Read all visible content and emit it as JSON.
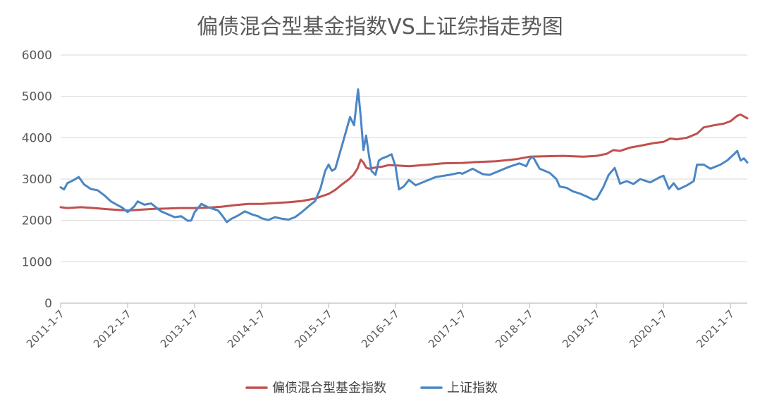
{
  "chart_data": {
    "type": "line",
    "title": "偏债混合型基金指数VS上证综指走势图",
    "xlabel": "",
    "ylabel": "",
    "ylim": [
      0,
      6000
    ],
    "yticks": [
      0,
      1000,
      2000,
      3000,
      4000,
      5000,
      6000
    ],
    "x_tick_labels": [
      "2011-1-7",
      "2012-1-7",
      "2013-1-7",
      "2014-1-7",
      "2015-1-7",
      "2016-1-7",
      "2017-1-7",
      "2018-1-7",
      "2019-1-7",
      "2020-1-7",
      "2021-1-7"
    ],
    "xlim_years": [
      2011.0,
      2021.25
    ],
    "legend_position": "bottom",
    "grid": true,
    "series": [
      {
        "name": "偏债混合型基金指数",
        "color": "#c0504d",
        "points": [
          [
            2011.0,
            2320
          ],
          [
            2011.1,
            2300
          ],
          [
            2011.3,
            2320
          ],
          [
            2011.5,
            2300
          ],
          [
            2011.7,
            2270
          ],
          [
            2011.9,
            2250
          ],
          [
            2012.0,
            2240
          ],
          [
            2012.2,
            2260
          ],
          [
            2012.4,
            2280
          ],
          [
            2012.6,
            2290
          ],
          [
            2012.8,
            2300
          ],
          [
            2013.0,
            2300
          ],
          [
            2013.2,
            2310
          ],
          [
            2013.4,
            2330
          ],
          [
            2013.6,
            2370
          ],
          [
            2013.8,
            2400
          ],
          [
            2014.0,
            2400
          ],
          [
            2014.2,
            2420
          ],
          [
            2014.4,
            2440
          ],
          [
            2014.6,
            2470
          ],
          [
            2014.8,
            2530
          ],
          [
            2015.0,
            2640
          ],
          [
            2015.1,
            2740
          ],
          [
            2015.2,
            2870
          ],
          [
            2015.3,
            2990
          ],
          [
            2015.37,
            3100
          ],
          [
            2015.43,
            3250
          ],
          [
            2015.48,
            3470
          ],
          [
            2015.52,
            3400
          ],
          [
            2015.56,
            3280
          ],
          [
            2015.6,
            3250
          ],
          [
            2015.7,
            3280
          ],
          [
            2015.8,
            3300
          ],
          [
            2015.9,
            3340
          ],
          [
            2016.0,
            3330
          ],
          [
            2016.2,
            3310
          ],
          [
            2016.5,
            3350
          ],
          [
            2016.7,
            3380
          ],
          [
            2017.0,
            3390
          ],
          [
            2017.2,
            3410
          ],
          [
            2017.5,
            3430
          ],
          [
            2017.8,
            3480
          ],
          [
            2018.0,
            3540
          ],
          [
            2018.2,
            3550
          ],
          [
            2018.5,
            3560
          ],
          [
            2018.8,
            3540
          ],
          [
            2019.0,
            3560
          ],
          [
            2019.15,
            3610
          ],
          [
            2019.25,
            3700
          ],
          [
            2019.35,
            3680
          ],
          [
            2019.5,
            3760
          ],
          [
            2019.7,
            3820
          ],
          [
            2019.85,
            3870
          ],
          [
            2020.0,
            3900
          ],
          [
            2020.1,
            3980
          ],
          [
            2020.2,
            3960
          ],
          [
            2020.35,
            4000
          ],
          [
            2020.5,
            4100
          ],
          [
            2020.6,
            4250
          ],
          [
            2020.75,
            4300
          ],
          [
            2020.9,
            4340
          ],
          [
            2021.0,
            4400
          ],
          [
            2021.1,
            4530
          ],
          [
            2021.15,
            4560
          ],
          [
            2021.25,
            4470
          ]
        ]
      },
      {
        "name": "上证指数",
        "color": "#4a86c5",
        "points": [
          [
            2011.0,
            2800
          ],
          [
            2011.05,
            2750
          ],
          [
            2011.1,
            2900
          ],
          [
            2011.2,
            2980
          ],
          [
            2011.27,
            3050
          ],
          [
            2011.35,
            2870
          ],
          [
            2011.45,
            2760
          ],
          [
            2011.55,
            2730
          ],
          [
            2011.65,
            2610
          ],
          [
            2011.75,
            2460
          ],
          [
            2011.85,
            2370
          ],
          [
            2011.92,
            2310
          ],
          [
            2012.0,
            2200
          ],
          [
            2012.1,
            2340
          ],
          [
            2012.15,
            2460
          ],
          [
            2012.25,
            2380
          ],
          [
            2012.35,
            2410
          ],
          [
            2012.5,
            2220
          ],
          [
            2012.6,
            2150
          ],
          [
            2012.7,
            2080
          ],
          [
            2012.8,
            2100
          ],
          [
            2012.9,
            1990
          ],
          [
            2012.95,
            2000
          ],
          [
            2013.0,
            2200
          ],
          [
            2013.1,
            2400
          ],
          [
            2013.2,
            2320
          ],
          [
            2013.35,
            2240
          ],
          [
            2013.42,
            2100
          ],
          [
            2013.48,
            1960
          ],
          [
            2013.55,
            2040
          ],
          [
            2013.65,
            2120
          ],
          [
            2013.75,
            2220
          ],
          [
            2013.85,
            2150
          ],
          [
            2013.95,
            2100
          ],
          [
            2014.0,
            2050
          ],
          [
            2014.1,
            2010
          ],
          [
            2014.2,
            2080
          ],
          [
            2014.3,
            2040
          ],
          [
            2014.4,
            2020
          ],
          [
            2014.5,
            2080
          ],
          [
            2014.6,
            2200
          ],
          [
            2014.7,
            2340
          ],
          [
            2014.8,
            2470
          ],
          [
            2014.88,
            2780
          ],
          [
            2014.95,
            3200
          ],
          [
            2015.0,
            3350
          ],
          [
            2015.05,
            3200
          ],
          [
            2015.1,
            3250
          ],
          [
            2015.18,
            3700
          ],
          [
            2015.25,
            4100
          ],
          [
            2015.32,
            4500
          ],
          [
            2015.38,
            4300
          ],
          [
            2015.44,
            5170
          ],
          [
            2015.48,
            4500
          ],
          [
            2015.52,
            3700
          ],
          [
            2015.56,
            4050
          ],
          [
            2015.6,
            3600
          ],
          [
            2015.64,
            3200
          ],
          [
            2015.7,
            3100
          ],
          [
            2015.75,
            3450
          ],
          [
            2015.8,
            3500
          ],
          [
            2015.88,
            3550
          ],
          [
            2015.94,
            3600
          ],
          [
            2016.0,
            3300
          ],
          [
            2016.05,
            2750
          ],
          [
            2016.12,
            2820
          ],
          [
            2016.2,
            2980
          ],
          [
            2016.3,
            2850
          ],
          [
            2016.45,
            2950
          ],
          [
            2016.6,
            3050
          ],
          [
            2016.8,
            3100
          ],
          [
            2016.95,
            3150
          ],
          [
            2017.0,
            3130
          ],
          [
            2017.15,
            3250
          ],
          [
            2017.3,
            3120
          ],
          [
            2017.4,
            3100
          ],
          [
            2017.55,
            3200
          ],
          [
            2017.7,
            3300
          ],
          [
            2017.85,
            3380
          ],
          [
            2017.95,
            3310
          ],
          [
            2018.0,
            3480
          ],
          [
            2018.05,
            3540
          ],
          [
            2018.15,
            3250
          ],
          [
            2018.3,
            3150
          ],
          [
            2018.4,
            3000
          ],
          [
            2018.45,
            2820
          ],
          [
            2018.55,
            2790
          ],
          [
            2018.65,
            2700
          ],
          [
            2018.75,
            2650
          ],
          [
            2018.85,
            2580
          ],
          [
            2018.95,
            2500
          ],
          [
            2019.0,
            2520
          ],
          [
            2019.1,
            2800
          ],
          [
            2019.18,
            3100
          ],
          [
            2019.27,
            3270
          ],
          [
            2019.35,
            2890
          ],
          [
            2019.45,
            2950
          ],
          [
            2019.55,
            2880
          ],
          [
            2019.65,
            3000
          ],
          [
            2019.8,
            2920
          ],
          [
            2019.95,
            3050
          ],
          [
            2020.0,
            3080
          ],
          [
            2020.08,
            2760
          ],
          [
            2020.15,
            2900
          ],
          [
            2020.22,
            2750
          ],
          [
            2020.35,
            2850
          ],
          [
            2020.45,
            2950
          ],
          [
            2020.5,
            3350
          ],
          [
            2020.6,
            3350
          ],
          [
            2020.7,
            3250
          ],
          [
            2020.85,
            3350
          ],
          [
            2020.95,
            3450
          ],
          [
            2021.05,
            3600
          ],
          [
            2021.1,
            3680
          ],
          [
            2021.15,
            3450
          ],
          [
            2021.2,
            3500
          ],
          [
            2021.25,
            3400
          ]
        ]
      }
    ]
  }
}
